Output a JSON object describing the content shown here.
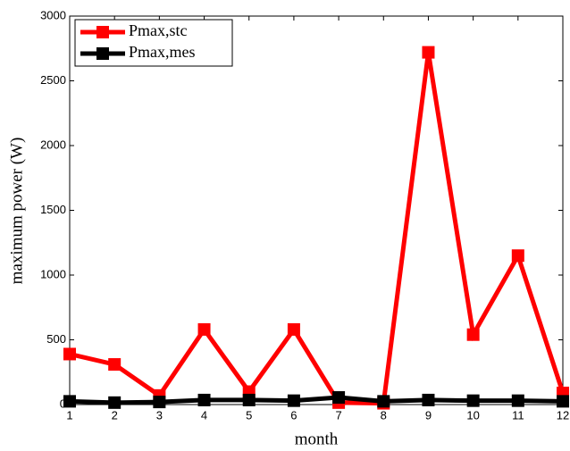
{
  "chart_data": {
    "type": "line",
    "x_label": "month",
    "y_label": "maximum power (W)",
    "x": [
      1,
      2,
      3,
      4,
      5,
      6,
      7,
      8,
      9,
      10,
      11,
      12
    ],
    "series": [
      {
        "name": "Pmax,stc",
        "color": "#ff0000",
        "values": [
          390,
          310,
          70,
          580,
          100,
          580,
          15,
          10,
          2720,
          540,
          1150,
          90
        ]
      },
      {
        "name": "Pmax,mes",
        "color": "#000000",
        "values": [
          25,
          15,
          20,
          35,
          35,
          30,
          55,
          25,
          35,
          30,
          30,
          25
        ]
      }
    ],
    "xlim": [
      1,
      12
    ],
    "xticks": [
      1,
      2,
      3,
      4,
      5,
      6,
      7,
      8,
      9,
      10,
      11,
      12
    ],
    "ylim": [
      0,
      3000
    ],
    "yticks": [
      0,
      500,
      1000,
      1500,
      2000,
      2500,
      3000
    ],
    "legend": "upper-left",
    "grid": false
  }
}
